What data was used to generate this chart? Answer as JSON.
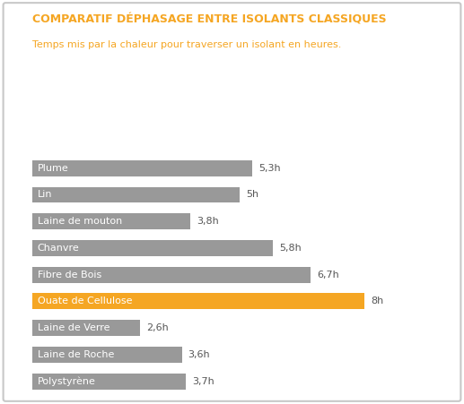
{
  "title": "COMPARATIF DÉPHASAGE ENTRE ISOLANTS CLASSIQUES",
  "subtitle": "Temps mis par la chaleur pour traverser un isolant en heures.",
  "categories": [
    "Plume",
    "Lin",
    "Laine de mouton",
    "Chanvre",
    "Fibre de Bois",
    "Ouate de Cellulose",
    "Laine de Verre",
    "Laine de Roche",
    "Polystyrène"
  ],
  "values": [
    5.3,
    5.0,
    3.8,
    5.8,
    6.7,
    8.0,
    2.6,
    3.6,
    3.7
  ],
  "labels": [
    "5,3h",
    "5h",
    "3,8h",
    "5,8h",
    "6,7h",
    "8h",
    "2,6h",
    "3,6h",
    "3,7h"
  ],
  "bar_colors": [
    "#999999",
    "#999999",
    "#999999",
    "#999999",
    "#999999",
    "#F5A623",
    "#999999",
    "#999999",
    "#999999"
  ],
  "title_color": "#F5A623",
  "subtitle_color": "#F5A623",
  "value_label_color": "#555555",
  "bar_text_color": "#ffffff",
  "xlim_max": 9.5,
  "background_color": "#ffffff",
  "border_color": "#c8c8c8",
  "bar_height": 0.6,
  "title_fontsize": 9.0,
  "subtitle_fontsize": 8.0,
  "bar_label_fontsize": 8.0,
  "value_label_fontsize": 8.0
}
